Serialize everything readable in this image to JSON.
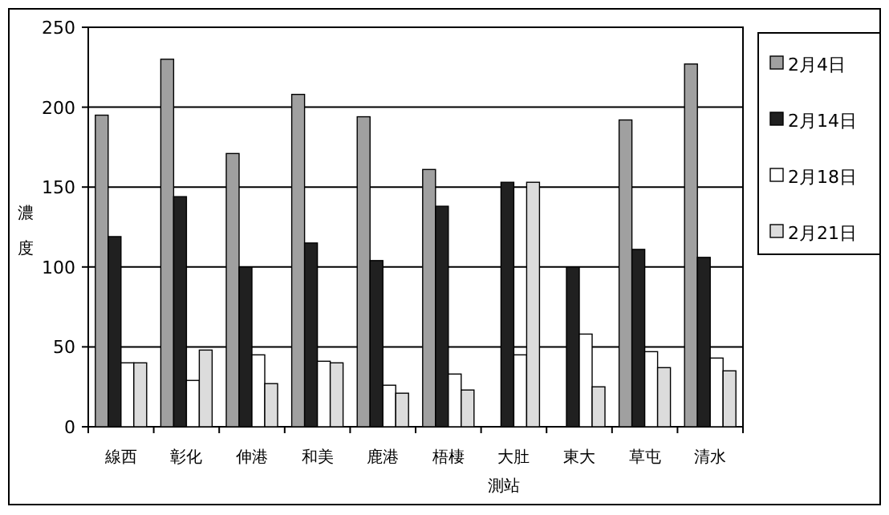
{
  "chart_data": {
    "type": "bar",
    "xlabel": "測站",
    "ylabel": "濃度",
    "categories": [
      "線西",
      "彰化",
      "伸港",
      "和美",
      "鹿港",
      "梧棲",
      "大肚",
      "東大",
      "草屯",
      "清水"
    ],
    "series": [
      {
        "name": "2月4日",
        "color": "#a0a0a0",
        "values": [
          195,
          230,
          171,
          208,
          194,
          161,
          null,
          null,
          192,
          227
        ]
      },
      {
        "name": "2月14日",
        "color": "#202020",
        "values": [
          119,
          144,
          100,
          115,
          104,
          138,
          153,
          100,
          111,
          106
        ]
      },
      {
        "name": "2月18日",
        "color": "#ffffff",
        "values": [
          40,
          29,
          45,
          41,
          26,
          33,
          45,
          58,
          47,
          43
        ]
      },
      {
        "name": "2月21日",
        "color": "#dcdcdc",
        "values": [
          40,
          48,
          27,
          40,
          21,
          23,
          153,
          25,
          37,
          35
        ]
      }
    ],
    "ylim": [
      0,
      250
    ],
    "yticks": [
      0,
      50,
      100,
      150,
      200,
      250
    ],
    "grid": "y",
    "legend": "right"
  }
}
